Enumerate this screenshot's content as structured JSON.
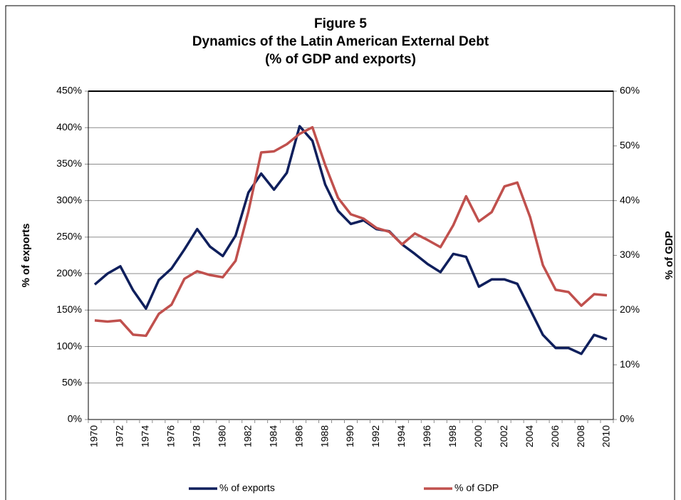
{
  "chart_data": {
    "type": "line",
    "title": [
      "Figure 5",
      "Dynamics of the Latin American External Debt",
      "(% of GDP and exports)"
    ],
    "ylabel": "% of exports",
    "y2label": "% of GDP",
    "categories": [
      "1970",
      null,
      "1972",
      null,
      "1974",
      null,
      "1976",
      null,
      "1978",
      null,
      "1980",
      null,
      "1982",
      null,
      "1984",
      null,
      "1986",
      null,
      "1988",
      null,
      "1990",
      null,
      "1992",
      null,
      "1994",
      null,
      "1996",
      null,
      "1998",
      null,
      "2000",
      null,
      "2002",
      null,
      "2004",
      null,
      "2006",
      null,
      "2008",
      null,
      "2010"
    ],
    "series": [
      {
        "name": "% of exports",
        "color": "#0f1f5c",
        "values": [
          185,
          200,
          210,
          177,
          152,
          191,
          207,
          233,
          261,
          237,
          224,
          252,
          311,
          337,
          315,
          338,
          402,
          382,
          322,
          286,
          268,
          273,
          261,
          258,
          240,
          227,
          213,
          202,
          227,
          223,
          182,
          192,
          192,
          186,
          151,
          116,
          98,
          98,
          90,
          116,
          110
        ]
      },
      {
        "name": "% of GDP",
        "color": "#c0504d",
        "axis": "y2",
        "values": [
          18.1,
          17.9,
          18.1,
          15.5,
          15.3,
          19.3,
          21.0,
          25.7,
          27.1,
          26.4,
          26.0,
          29.0,
          38.0,
          48.8,
          49.0,
          50.3,
          52.2,
          53.4,
          46.5,
          40.5,
          37.5,
          36.7,
          35.0,
          34.3,
          32.0,
          34.0,
          32.8,
          31.5,
          35.5,
          40.8,
          36.2,
          37.9,
          42.6,
          43.3,
          37.0,
          28.2,
          23.7,
          23.3,
          20.8,
          22.9,
          22.7
        ]
      }
    ],
    "ylim": [
      0,
      450
    ],
    "yticks": [
      {
        "value": 0,
        "label": "0%"
      },
      {
        "value": 50,
        "label": "50%"
      },
      {
        "value": 100,
        "label": "100%"
      },
      {
        "value": 150,
        "label": "150%"
      },
      {
        "value": 200,
        "label": "200%"
      },
      {
        "value": 250,
        "label": "250%"
      },
      {
        "value": 300,
        "label": "300%"
      },
      {
        "value": 350,
        "label": "350%"
      },
      {
        "value": 400,
        "label": "400%"
      },
      {
        "value": 450,
        "label": "450%"
      }
    ],
    "y2lim": [
      0,
      60
    ],
    "y2ticks": [
      {
        "value": 0,
        "label": "0%"
      },
      {
        "value": 10,
        "label": "10%"
      },
      {
        "value": 20,
        "label": "20%"
      },
      {
        "value": 30,
        "label": "30%"
      },
      {
        "value": 40,
        "label": "40%"
      },
      {
        "value": 50,
        "label": "50%"
      },
      {
        "value": 60,
        "label": "60%"
      }
    ],
    "grid": true,
    "legend": "bottom"
  }
}
